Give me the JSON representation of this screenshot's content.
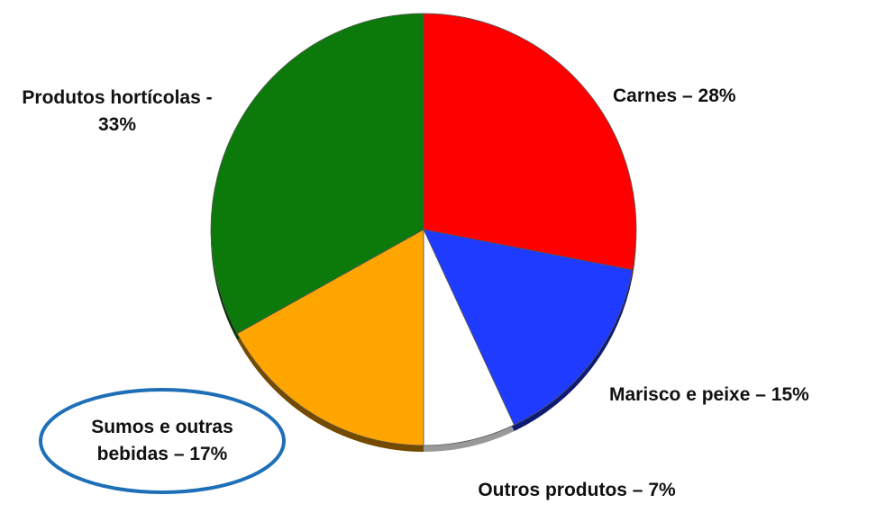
{
  "chart_data": {
    "type": "pie",
    "values": [
      28,
      15,
      7,
      17,
      33
    ],
    "value_labels": [
      "Carnes – 28%",
      "Marisco e peixe – 15%",
      "Outros produtos – 7%",
      "Sumos e outras bebidas – 17%",
      "Produtos hortícolas - 33%"
    ],
    "colors": [
      "#ff0000",
      "#1f3bff",
      "#ffffff",
      "#ffa500",
      "#0b7a0b"
    ],
    "start_angle": 0,
    "direction": "clockwise"
  }
}
